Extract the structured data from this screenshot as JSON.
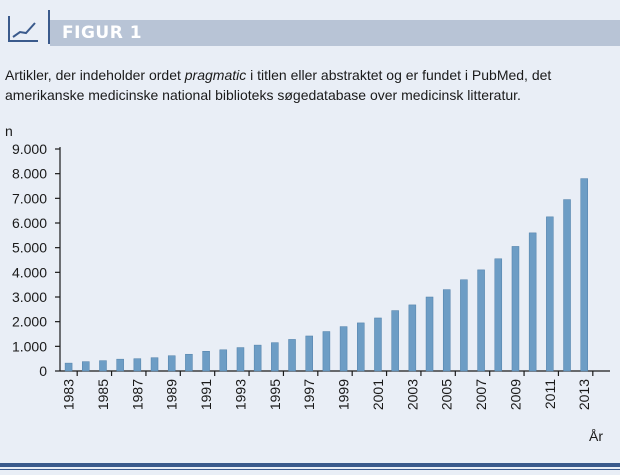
{
  "header": {
    "title": "FIGUR 1",
    "icon": "line-chart-icon"
  },
  "caption": {
    "before": "Artikler, der indeholder ordet ",
    "emph": "pragmatic",
    "after": " i titlen eller abstraktet og er fundet i PubMed, det amerikanske medicinske national biblioteks søgedatabase over medicinsk litteratur."
  },
  "colors": {
    "bar": "#6d9dc5",
    "bar_edge": "#4f7fa8",
    "axis": "#1a1a1a",
    "header_band": "#b8c4d6",
    "rule": "#3a5a8c"
  },
  "chart_data": {
    "type": "bar",
    "title": "",
    "xlabel": "År",
    "ylabel": "n",
    "ylim": [
      0,
      9000
    ],
    "yticks": [
      0,
      1000,
      2000,
      3000,
      4000,
      5000,
      6000,
      7000,
      8000,
      9000
    ],
    "ytick_labels": [
      "0",
      "1.000",
      "2.000",
      "3.000",
      "4.000",
      "5.000",
      "6.000",
      "7.000",
      "8.000",
      "9.000"
    ],
    "categories": [
      "1983",
      "1984",
      "1985",
      "1986",
      "1987",
      "1988",
      "1989",
      "1990",
      "1991",
      "1992",
      "1993",
      "1994",
      "1995",
      "1996",
      "1997",
      "1998",
      "1999",
      "2000",
      "2001",
      "2002",
      "2003",
      "2004",
      "2005",
      "2006",
      "2007",
      "2008",
      "2009",
      "2010",
      "2011",
      "2012",
      "2013",
      "2014"
    ],
    "xtick_labels": [
      "1983",
      "1985",
      "1987",
      "1989",
      "1991",
      "1993",
      "1995",
      "1997",
      "1999",
      "2001",
      "2003",
      "2005",
      "2007",
      "2009",
      "2011",
      "2013"
    ],
    "values": [
      320,
      380,
      420,
      480,
      500,
      540,
      620,
      680,
      800,
      860,
      950,
      1050,
      1150,
      1280,
      1420,
      1600,
      1800,
      1950,
      2150,
      2450,
      2680,
      3000,
      3300,
      3700,
      4100,
      4550,
      5050,
      5600,
      6250,
      6950,
      7800,
      0
    ],
    "grid": false,
    "legend": "none"
  }
}
